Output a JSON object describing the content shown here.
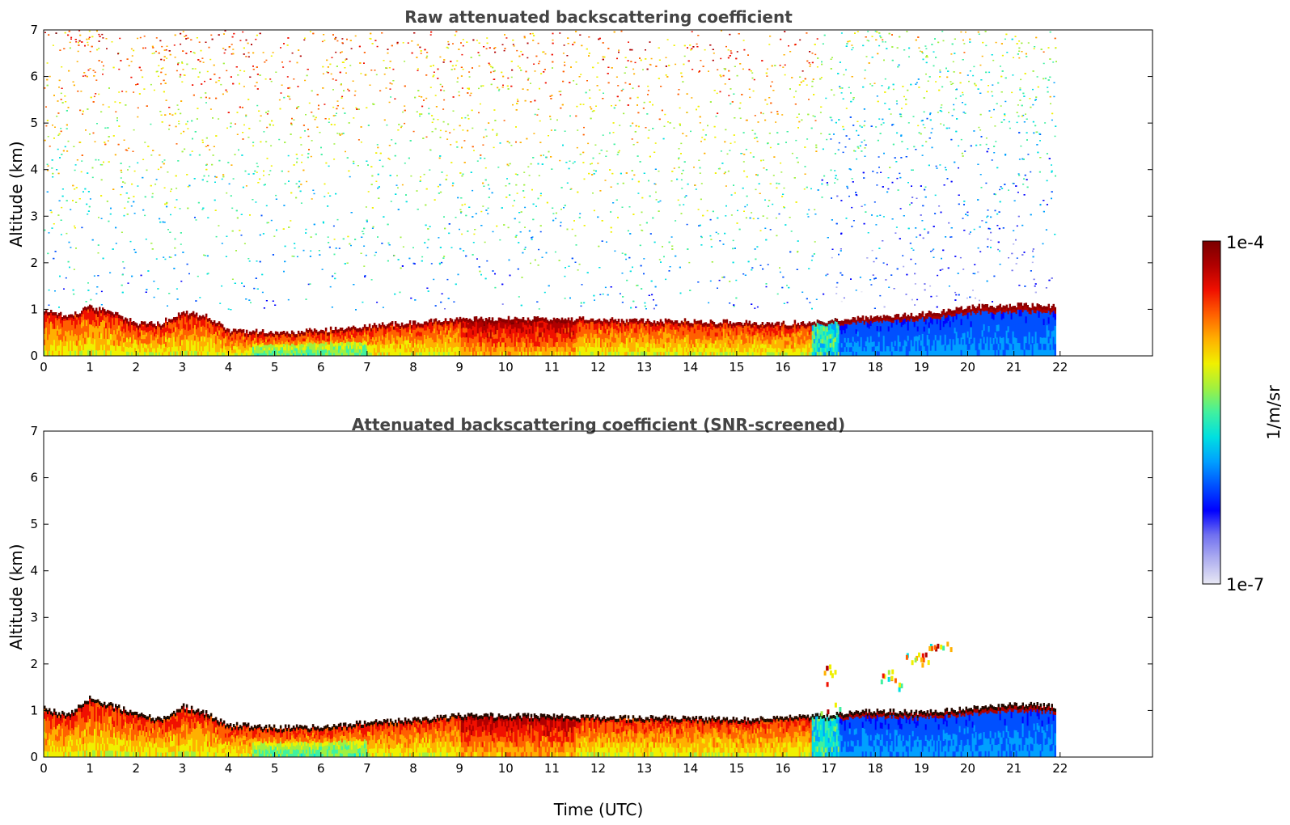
{
  "chart_data": [
    {
      "type": "heatmap",
      "title": "Raw attenuated backscattering coefficient",
      "xlabel": "",
      "ylabel": "Altitude (km)",
      "xlim": [
        0,
        24
      ],
      "ylim": [
        0,
        7
      ],
      "x_ticks": [
        "0",
        "1",
        "2",
        "3",
        "4",
        "5",
        "6",
        "7",
        "8",
        "9",
        "10",
        "11",
        "12",
        "13",
        "14",
        "15",
        "16",
        "17",
        "18",
        "19",
        "20",
        "21",
        "22"
      ],
      "y_ticks": [
        "0",
        "1",
        "2",
        "3",
        "4",
        "5",
        "6",
        "7"
      ],
      "data_end_hour": 21.9,
      "boundary_layer_top_km": [
        [
          0,
          1.0
        ],
        [
          0.5,
          0.85
        ],
        [
          1,
          1.05
        ],
        [
          1.5,
          0.95
        ],
        [
          2,
          0.7
        ],
        [
          2.5,
          0.7
        ],
        [
          3,
          0.95
        ],
        [
          3.5,
          0.85
        ],
        [
          4,
          0.55
        ],
        [
          5,
          0.5
        ],
        [
          6,
          0.55
        ],
        [
          7,
          0.65
        ],
        [
          8,
          0.72
        ],
        [
          9,
          0.8
        ],
        [
          10,
          0.8
        ],
        [
          11,
          0.8
        ],
        [
          12,
          0.78
        ],
        [
          13,
          0.75
        ],
        [
          14,
          0.75
        ],
        [
          15,
          0.72
        ],
        [
          16,
          0.7
        ],
        [
          17,
          0.75
        ],
        [
          18,
          0.85
        ],
        [
          19,
          0.9
        ],
        [
          20,
          1.05
        ],
        [
          21,
          1.1
        ],
        [
          21.9,
          1.05
        ]
      ],
      "noise": "raw",
      "grid": false
    },
    {
      "type": "heatmap",
      "title": "Attenuated backscattering coefficient (SNR-screened)",
      "xlabel": "Time (UTC)",
      "ylabel": "Altitude (km)",
      "xlim": [
        0,
        24
      ],
      "ylim": [
        0,
        7
      ],
      "x_ticks": [
        "0",
        "1",
        "2",
        "3",
        "4",
        "5",
        "6",
        "7",
        "8",
        "9",
        "10",
        "11",
        "12",
        "13",
        "14",
        "15",
        "16",
        "17",
        "18",
        "19",
        "20",
        "21",
        "22"
      ],
      "y_ticks": [
        "0",
        "1",
        "2",
        "3",
        "4",
        "5",
        "6",
        "7"
      ],
      "data_end_hour": 21.9,
      "boundary_layer_top_km": [
        [
          0,
          1.05
        ],
        [
          0.5,
          0.9
        ],
        [
          1,
          1.3
        ],
        [
          1.5,
          1.1
        ],
        [
          2,
          0.95
        ],
        [
          2.5,
          0.8
        ],
        [
          3,
          1.1
        ],
        [
          3.5,
          0.95
        ],
        [
          4,
          0.7
        ],
        [
          5,
          0.65
        ],
        [
          6,
          0.65
        ],
        [
          7,
          0.75
        ],
        [
          8,
          0.82
        ],
        [
          9,
          0.9
        ],
        [
          10,
          0.9
        ],
        [
          11,
          0.88
        ],
        [
          12,
          0.86
        ],
        [
          13,
          0.85
        ],
        [
          14,
          0.85
        ],
        [
          15,
          0.82
        ],
        [
          16,
          0.85
        ],
        [
          17,
          0.9
        ],
        [
          18,
          1.0
        ],
        [
          19,
          0.95
        ],
        [
          20,
          1.05
        ],
        [
          21,
          1.15
        ],
        [
          21.9,
          1.1
        ]
      ],
      "elevated_layers": [
        {
          "x": 17.0,
          "top_km": 2.05,
          "bottom_km": 0.9
        },
        {
          "x": 18.3,
          "top_km": 1.9,
          "bottom_km": 1.5
        },
        {
          "x": 18.9,
          "top_km": 2.3,
          "bottom_km": 2.0
        },
        {
          "x": 19.4,
          "top_km": 2.5,
          "bottom_km": 2.35
        }
      ],
      "noise": "screened",
      "grid": false
    }
  ],
  "colorbar": {
    "max_label": "1e-4",
    "min_label": "1e-7",
    "unit_label": "1/m/sr",
    "scale": "log",
    "colors": [
      "#e8e8f4",
      "#b0b0f0",
      "#7070f0",
      "#0000ff",
      "#0050ff",
      "#00a0ff",
      "#00e0e0",
      "#40f0a0",
      "#a0f040",
      "#f0f000",
      "#ffb000",
      "#ff6000",
      "#f01000",
      "#b00000",
      "#7a0000"
    ]
  }
}
